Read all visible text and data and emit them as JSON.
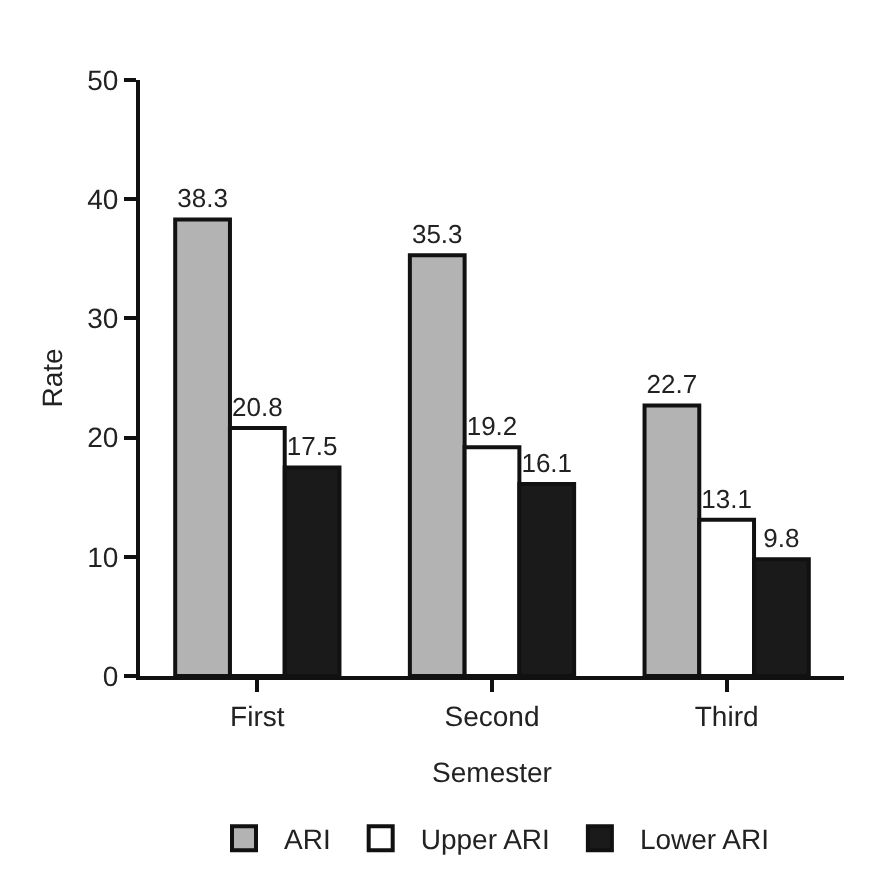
{
  "chart_data": {
    "type": "bar",
    "xlabel": "Semester",
    "ylabel": "Rate",
    "categories": [
      "First",
      "Second",
      "Third"
    ],
    "series": [
      {
        "name": "ARI",
        "color": "#b3b3b3",
        "values": [
          38.3,
          35.3,
          22.7
        ]
      },
      {
        "name": "Upper ARI",
        "color": "#ffffff",
        "values": [
          20.8,
          19.2,
          13.1
        ]
      },
      {
        "name": "Lower ARI",
        "color": "#1a1a1a",
        "values": [
          17.5,
          16.1,
          9.8
        ]
      }
    ],
    "ylim": [
      0,
      50
    ],
    "yticks": [
      0,
      10,
      20,
      30,
      40,
      50
    ],
    "grid": false,
    "legend": "bottom",
    "data_labels": true
  }
}
